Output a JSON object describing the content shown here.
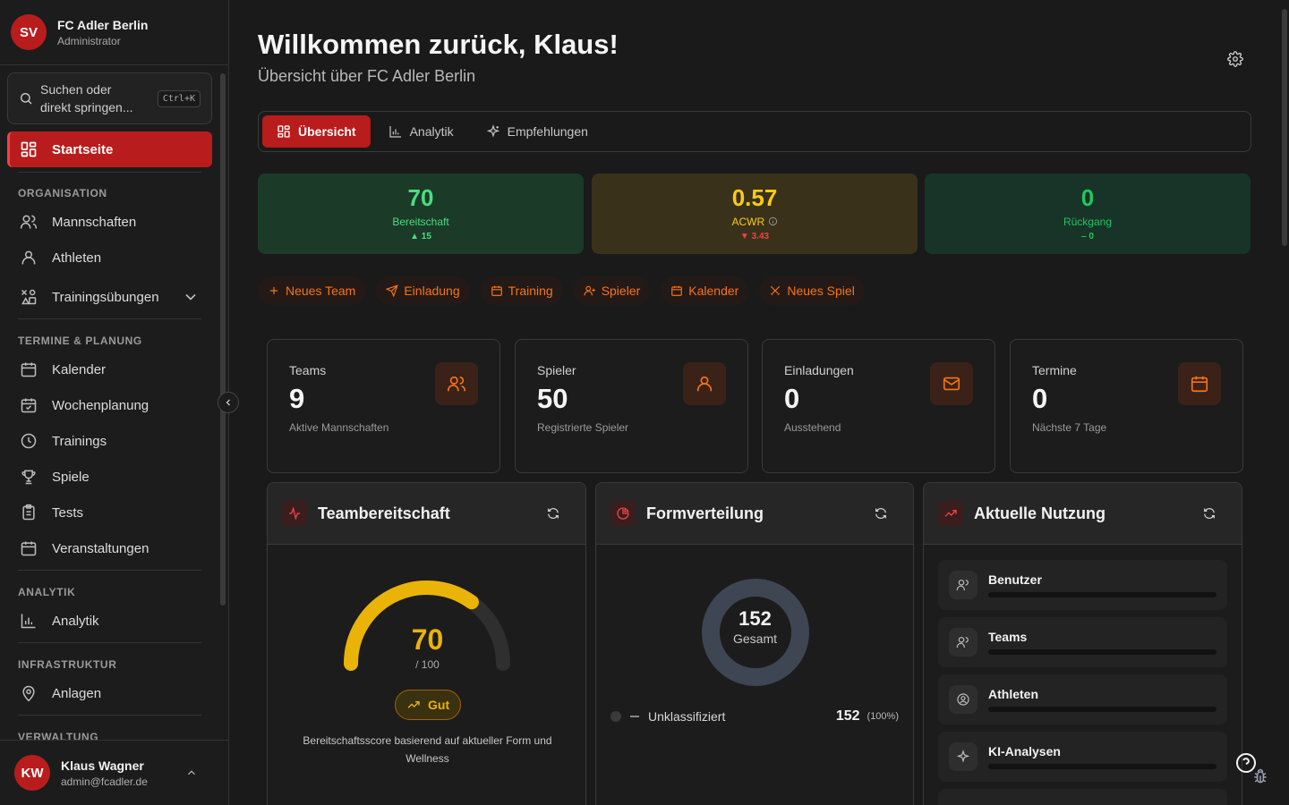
{
  "org": {
    "initials": "SV",
    "name": "FC Adler Berlin",
    "role": "Administrator"
  },
  "search": {
    "placeholder": "Suchen oder direkt springen...",
    "shortcut": "Ctrl+K"
  },
  "nav": {
    "home": "Startseite",
    "sections": {
      "organisation": "ORGANISATION",
      "planning": "TERMINE & PLANUNG",
      "analytics": "ANALYTIK",
      "infrastructure": "INFRASTRUKTUR",
      "admin": "VERWALTUNG"
    },
    "items": {
      "teams": "Mannschaften",
      "athletes": "Athleten",
      "exercises": "Trainingsübungen",
      "calendar": "Kalender",
      "weekly": "Wochenplanung",
      "trainings": "Trainings",
      "games": "Spiele",
      "tests": "Tests",
      "events": "Veranstaltungen",
      "analytics": "Analytik",
      "facilities": "Anlagen"
    }
  },
  "user": {
    "initials": "KW",
    "name": "Klaus Wagner",
    "email": "admin@fcadler.de"
  },
  "header": {
    "title": "Willkommen zurück, Klaus!",
    "subtitle": "Übersicht über FC Adler Berlin"
  },
  "tabs": [
    "Übersicht",
    "Analytik",
    "Empfehlungen"
  ],
  "kpis": [
    {
      "value": "70",
      "label": "Bereitschaft",
      "delta": "▲ 15",
      "color": "#4ade80"
    },
    {
      "value": "0.57",
      "label": "ACWR",
      "delta": "▼ 3.43",
      "color": "#facc15",
      "delta_color": "#ef4444"
    },
    {
      "value": "0",
      "label": "Rückgang",
      "delta": "– 0",
      "color": "#22c55e"
    }
  ],
  "actions": [
    "Neues Team",
    "Einladung",
    "Training",
    "Spieler",
    "Kalender",
    "Neues Spiel"
  ],
  "stats": [
    {
      "title": "Teams",
      "value": "9",
      "sub": "Aktive Mannschaften",
      "icon": "users-icon"
    },
    {
      "title": "Spieler",
      "value": "50",
      "sub": "Registrierte Spieler",
      "icon": "user-icon"
    },
    {
      "title": "Einladungen",
      "value": "0",
      "sub": "Ausstehend",
      "icon": "mail-icon"
    },
    {
      "title": "Termine",
      "value": "0",
      "sub": "Nächste 7 Tage",
      "icon": "calendar-icon"
    }
  ],
  "readiness": {
    "title": "Teambereitschaft",
    "value": "70",
    "max": "/ 100",
    "fraction": 0.7,
    "badge": "Gut",
    "description": "Bereitschaftsscore basierend auf aktueller Form und Wellness"
  },
  "form": {
    "title": "Formverteilung",
    "total": "152",
    "total_label": "Gesamt",
    "legend": [
      {
        "name": "Unklassifiziert",
        "value": "152",
        "percent": "(100%)"
      }
    ]
  },
  "usage": {
    "title": "Aktuelle Nutzung",
    "rows": [
      "Benutzer",
      "Teams",
      "Athleten",
      "KI-Analysen"
    ]
  },
  "colors": {
    "accent": "#b91c1c",
    "orange": "#f97316",
    "yellow": "#eab308"
  }
}
